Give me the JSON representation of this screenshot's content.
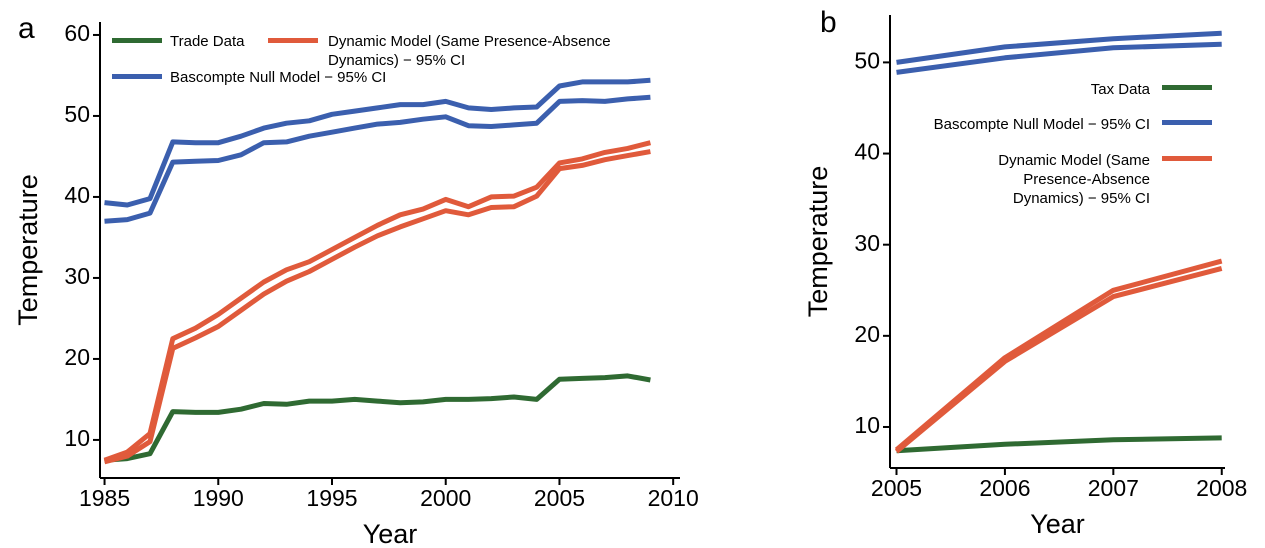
{
  "chart_data": [
    {
      "type": "line",
      "panel": "a",
      "xlabel": "Year",
      "ylabel": "Temperature",
      "x": [
        1985,
        1986,
        1987,
        1988,
        1989,
        1990,
        1991,
        1992,
        1993,
        1994,
        1995,
        1996,
        1997,
        1998,
        1999,
        2000,
        2001,
        2002,
        2003,
        2004,
        2005,
        2006,
        2007,
        2008,
        2009
      ],
      "xlim": [
        1984.8,
        2010.3
      ],
      "xticks": [
        1985,
        1990,
        1995,
        2000,
        2005,
        2010
      ],
      "ylim": [
        5.3,
        61.6
      ],
      "yticks": [
        10,
        20,
        30,
        40,
        50,
        60
      ],
      "series": [
        {
          "name": "Trade Data",
          "color": "#2f6a32",
          "values": [
            7.5,
            7.7,
            8.3,
            13.5,
            13.4,
            13.4,
            13.8,
            14.5,
            14.4,
            14.8,
            14.8,
            15.0,
            14.8,
            14.6,
            14.7,
            15.0,
            15.0,
            15.1,
            15.3,
            15.0,
            17.5,
            17.6,
            17.7,
            17.9,
            17.4
          ]
        },
        {
          "name": "Dynamic Model (Same Presence-Absence Dynamics) − 95% CI",
          "color": "#e05a3b",
          "upper": [
            7.5,
            8.5,
            10.8,
            22.5,
            23.8,
            25.5,
            27.5,
            29.5,
            31.0,
            32.0,
            33.5,
            35.0,
            36.5,
            37.8,
            38.5,
            39.7,
            38.8,
            40.0,
            40.1,
            41.2,
            44.2,
            44.7,
            45.5,
            46.0,
            46.7
          ],
          "lower": [
            7.3,
            8.0,
            9.8,
            21.3,
            22.6,
            24.0,
            26.0,
            28.0,
            29.6,
            30.8,
            32.3,
            33.8,
            35.2,
            36.3,
            37.3,
            38.3,
            37.8,
            38.7,
            38.8,
            40.1,
            43.5,
            43.9,
            44.6,
            45.1,
            45.6
          ]
        },
        {
          "name": "Bascompte Null Model − 95% CI",
          "color": "#3b5fae",
          "upper": [
            39.3,
            39.0,
            39.8,
            46.8,
            46.7,
            46.7,
            47.5,
            48.5,
            49.1,
            49.4,
            50.2,
            50.6,
            51.0,
            51.4,
            51.4,
            51.8,
            51.0,
            50.8,
            51.0,
            51.1,
            53.7,
            54.2,
            54.2,
            54.2,
            54.4
          ],
          "lower": [
            37.0,
            37.2,
            38.0,
            44.3,
            44.4,
            44.5,
            45.2,
            46.7,
            46.8,
            47.5,
            48.0,
            48.5,
            49.0,
            49.2,
            49.6,
            49.9,
            48.8,
            48.7,
            48.9,
            49.1,
            51.8,
            51.9,
            51.8,
            52.1,
            52.3
          ]
        }
      ]
    },
    {
      "type": "line",
      "panel": "b",
      "xlabel": "Year",
      "ylabel": "Temperature",
      "x": [
        2005,
        2006,
        2007,
        2008
      ],
      "xlim": [
        2004.94,
        2008.03
      ],
      "xticks": [
        2005,
        2006,
        2007,
        2008
      ],
      "ylim": [
        5.5,
        55.2
      ],
      "yticks": [
        10,
        20,
        30,
        40,
        50
      ],
      "series": [
        {
          "name": "Tax Data",
          "color": "#2f6a32",
          "values": [
            7.4,
            8.1,
            8.6,
            8.8
          ]
        },
        {
          "name": "Bascompte Null Model − 95% CI",
          "color": "#3b5fae",
          "upper": [
            50.0,
            51.7,
            52.6,
            53.2
          ],
          "lower": [
            48.9,
            50.5,
            51.6,
            52.0
          ]
        },
        {
          "name": "Dynamic Model (Same Presence-Absence Dynamics) − 95% CI",
          "color": "#e05a3b",
          "upper": [
            7.5,
            17.6,
            25.0,
            28.2
          ],
          "lower": [
            7.3,
            17.2,
            24.3,
            27.4
          ]
        }
      ]
    }
  ]
}
